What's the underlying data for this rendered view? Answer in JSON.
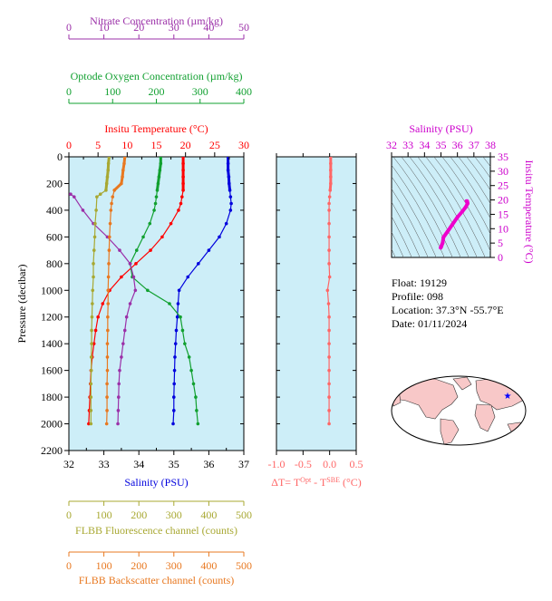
{
  "colors": {
    "plot_bg": "#cdeef8",
    "temperature": "#ff0000",
    "salinity": "#0000dd",
    "oxygen": "#11a030",
    "nitrate": "#9b30a8",
    "fluorescence": "#a8a832",
    "backscatter": "#e87820",
    "delta_t": "#ff6666",
    "ts_curve": "#ee00cc",
    "ts_axis": "#cc00cc",
    "map_land": "#f8c8c8",
    "map_ocean": "#ffffff",
    "marker": "#0000ff"
  },
  "info": {
    "float": "Float:  19129",
    "profile": "Profile:  098",
    "location": "Location:  37.3°N  -55.7°E",
    "date": "Date:  01/11/2024"
  },
  "chart_data": [
    {
      "type": "line",
      "name": "profile-panel",
      "ylabel": "Pressure (decibar)",
      "ylim": [
        2200,
        0
      ],
      "yticks": [
        0,
        200,
        400,
        600,
        800,
        1000,
        1200,
        1400,
        1600,
        1800,
        2000,
        2200
      ],
      "grid": false,
      "axes": [
        {
          "id": "nitrate",
          "label": "Nitrate Concentration (µm/kg)",
          "range": [
            0,
            50
          ],
          "ticks": [
            0,
            10,
            20,
            30,
            40,
            50
          ],
          "position": "top",
          "color_key": "nitrate"
        },
        {
          "id": "oxygen",
          "label": "Optode Oxygen Concentration (µm/kg)",
          "range": [
            0,
            400
          ],
          "ticks": [
            0,
            100,
            200,
            300,
            400
          ],
          "position": "top",
          "color_key": "oxygen"
        },
        {
          "id": "temperature",
          "label": "Insitu Temperature (°C)",
          "range": [
            0,
            30
          ],
          "ticks": [
            0,
            5,
            10,
            15,
            20,
            25,
            30
          ],
          "position": "top",
          "color_key": "temperature"
        },
        {
          "id": "salinity",
          "label": "Salinity (PSU)",
          "range": [
            32,
            37
          ],
          "ticks": [
            32,
            33,
            34,
            35,
            36,
            37
          ],
          "position": "bottom",
          "color_key": "salinity"
        },
        {
          "id": "fluorescence",
          "label": "FLBB Fluorescence channel (counts)",
          "range": [
            0,
            500
          ],
          "ticks": [
            0,
            100,
            200,
            300,
            400,
            500
          ],
          "position": "bottom",
          "color_key": "fluorescence"
        },
        {
          "id": "backscatter",
          "label": "FLBB Backscatter channel (counts)",
          "range": [
            0,
            500
          ],
          "ticks": [
            0,
            100,
            200,
            300,
            400,
            500
          ],
          "position": "bottom",
          "color_key": "backscatter"
        }
      ],
      "series": [
        {
          "axis": "salinity",
          "pressure": [
            0,
            50,
            100,
            150,
            200,
            250,
            300,
            350,
            400,
            500,
            600,
            700,
            800,
            900,
            1000,
            1100,
            1200,
            1300,
            1400,
            1500,
            1600,
            1700,
            1800,
            1900,
            2000
          ],
          "values": [
            36.55,
            36.55,
            36.55,
            36.57,
            36.58,
            36.6,
            36.62,
            36.64,
            36.62,
            36.5,
            36.3,
            36.0,
            35.7,
            35.4,
            35.15,
            35.12,
            35.1,
            35.07,
            35.05,
            35.03,
            35.02,
            35.01,
            35.0,
            35.0,
            34.98
          ]
        },
        {
          "axis": "temperature",
          "pressure": [
            0,
            50,
            100,
            150,
            200,
            250,
            300,
            350,
            400,
            500,
            600,
            700,
            800,
            900,
            1000,
            1100,
            1200,
            1300,
            1400,
            1500,
            1600,
            1700,
            1800,
            1900,
            2000
          ],
          "values": [
            19.6,
            19.6,
            19.6,
            19.6,
            19.6,
            19.6,
            19.4,
            19.2,
            18.8,
            17.5,
            16.0,
            14.0,
            11.5,
            9.0,
            7.0,
            5.8,
            5.0,
            4.6,
            4.3,
            4.0,
            3.8,
            3.7,
            3.6,
            3.5,
            3.4
          ]
        },
        {
          "axis": "oxygen",
          "pressure": [
            0,
            50,
            100,
            150,
            200,
            250,
            300,
            350,
            400,
            500,
            600,
            700,
            800,
            900,
            1000,
            1100,
            1200,
            1300,
            1400,
            1500,
            1600,
            1700,
            1800,
            1900,
            2000
          ],
          "values": [
            210,
            210,
            208,
            206,
            204,
            202,
            200,
            198,
            195,
            185,
            170,
            155,
            140,
            145,
            180,
            230,
            255,
            260,
            265,
            275,
            280,
            285,
            290,
            292,
            295
          ]
        },
        {
          "axis": "nitrate",
          "pressure": [
            280,
            300,
            400,
            500,
            600,
            700,
            800,
            900,
            1000,
            1100,
            1200,
            1300,
            1400,
            1500,
            1600,
            1700,
            1800,
            1900,
            2000
          ],
          "values": [
            0.5,
            1.5,
            4.0,
            7.0,
            11.0,
            14.5,
            17.5,
            18.5,
            19.0,
            17.5,
            16.5,
            16.0,
            15.5,
            15.0,
            14.5,
            14.3,
            14.2,
            14.1,
            14.0
          ]
        },
        {
          "axis": "fluorescence",
          "pressure": [
            0,
            50,
            100,
            150,
            200,
            250,
            280,
            300,
            400,
            500,
            600,
            700,
            800,
            900,
            1000,
            1100,
            1200,
            1300,
            1400,
            1500,
            1600,
            1700,
            1800,
            1900,
            2000
          ],
          "values": [
            115,
            113,
            112,
            110,
            108,
            106,
            90,
            80,
            78,
            75,
            74,
            72,
            70,
            70,
            68,
            67,
            66,
            65,
            65,
            64,
            64,
            63,
            63,
            63,
            63
          ]
        },
        {
          "axis": "backscatter",
          "pressure": [
            0,
            50,
            100,
            150,
            200,
            250,
            300,
            350,
            400,
            500,
            600,
            700,
            800,
            900,
            1000,
            1100,
            1200,
            1300,
            1400,
            1500,
            1600,
            1700,
            1800,
            1900,
            2000
          ],
          "values": [
            160,
            158,
            155,
            153,
            150,
            130,
            125,
            122,
            120,
            118,
            116,
            115,
            114,
            113,
            112,
            112,
            111,
            111,
            110,
            110,
            110,
            109,
            109,
            109,
            108
          ]
        }
      ]
    },
    {
      "type": "line",
      "name": "delta-t-panel",
      "xlabel_parts": [
        "ΔT= T",
        "Opt",
        " - T",
        "SBE",
        " (°C)"
      ],
      "xlim": [
        -1.0,
        0.5
      ],
      "xticks": [
        -1.0,
        -0.5,
        0.0,
        0.5
      ],
      "xtick_labels": [
        "-1.0",
        "-0.5",
        "0.0",
        "0.5"
      ],
      "ylim": [
        2200,
        0
      ],
      "series": [
        {
          "pressure": [
            0,
            50,
            100,
            150,
            200,
            250,
            300,
            350,
            400,
            500,
            600,
            700,
            800,
            900,
            1000,
            1100,
            1200,
            1300,
            1400,
            1500,
            1600,
            1700,
            1800,
            1900,
            2000
          ],
          "values": [
            0.02,
            0.02,
            0.02,
            0.02,
            0.02,
            0.01,
            0.0,
            -0.01,
            -0.01,
            -0.01,
            -0.01,
            -0.01,
            -0.01,
            0.0,
            -0.04,
            -0.02,
            -0.01,
            -0.01,
            -0.01,
            -0.01,
            -0.01,
            -0.01,
            -0.01,
            -0.01,
            -0.01
          ]
        }
      ]
    },
    {
      "type": "scatter",
      "name": "ts-diagram",
      "xlabel": "Salinity (PSU)",
      "ylabel": "Insitu Temperature (°C)",
      "xlim": [
        32,
        38
      ],
      "ylim": [
        0,
        35
      ],
      "xticks": [
        32,
        33,
        34,
        35,
        36,
        37,
        38
      ],
      "yticks": [
        0,
        5,
        10,
        15,
        20,
        25,
        30,
        35
      ],
      "series": [
        {
          "salinity": [
            34.98,
            35.0,
            35.02,
            35.05,
            35.1,
            35.15,
            35.4,
            35.7,
            36.0,
            36.3,
            36.5,
            36.62,
            36.6,
            36.58,
            36.55
          ],
          "temperature": [
            3.4,
            3.6,
            3.8,
            4.3,
            5.0,
            7.0,
            9.0,
            11.5,
            14.0,
            16.0,
            17.5,
            18.8,
            19.4,
            19.6,
            19.6
          ]
        }
      ]
    },
    {
      "type": "scatter",
      "name": "location-map",
      "marker": {
        "lat": 37.3,
        "lon": -55.7
      }
    }
  ]
}
